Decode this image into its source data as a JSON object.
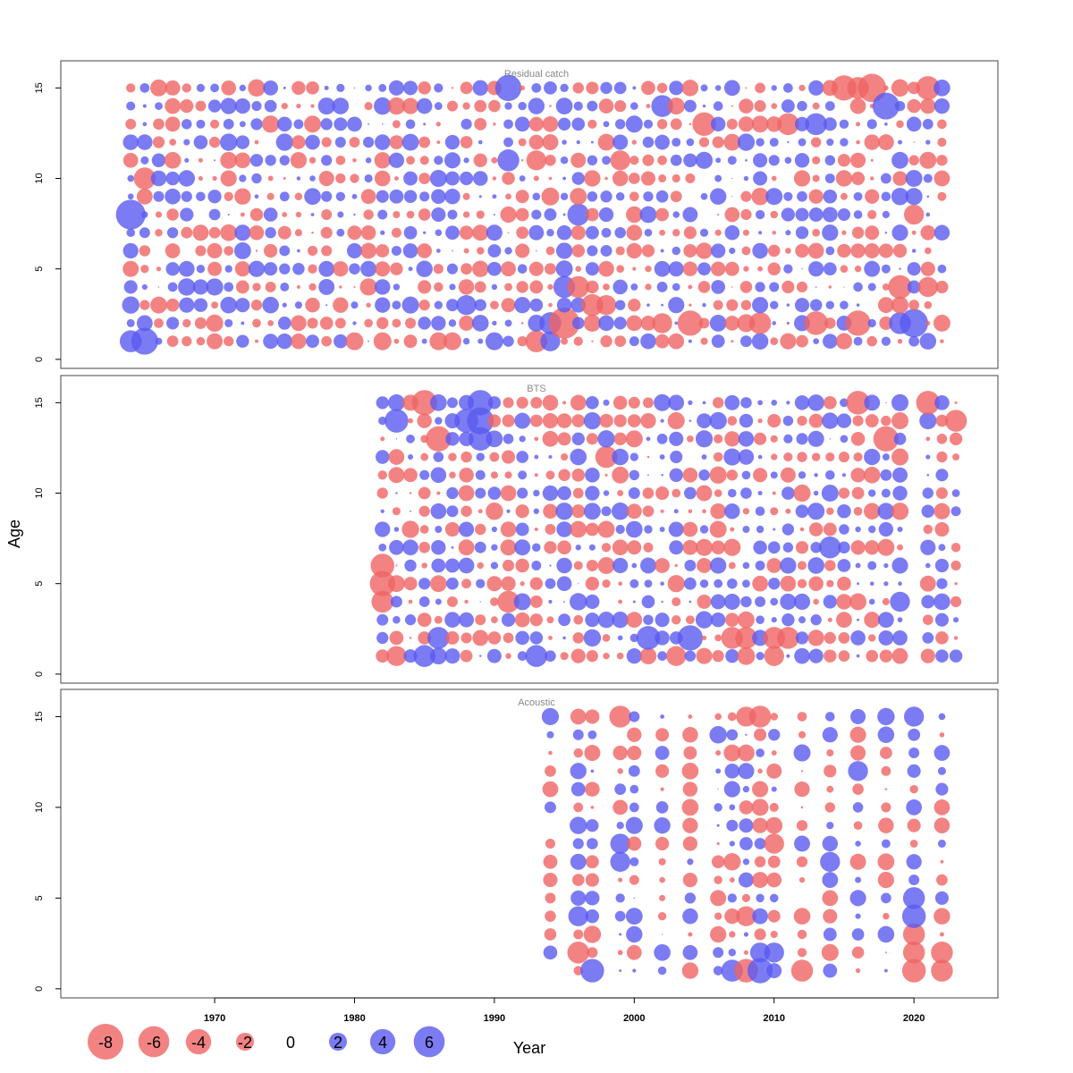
{
  "chart_data": {
    "type": "scatter",
    "xlabel": "Year",
    "ylabel": "Age",
    "xlim": [
      1959,
      2026
    ],
    "ylim": [
      -0.5,
      16.5
    ],
    "x_ticks": [
      1970,
      1980,
      1990,
      2000,
      2010,
      2020
    ],
    "y_ticks": [
      0,
      5,
      10,
      15
    ],
    "max_abs_residual": 8,
    "colors": {
      "positive": "#5a5af0",
      "negative": "#f06464"
    },
    "legend": {
      "placement": "bottom-left",
      "values": [
        -8,
        -6,
        -4,
        -2,
        0,
        2,
        4,
        6
      ]
    },
    "panels": [
      {
        "title": "Residual catch",
        "years": [
          1964,
          2022
        ],
        "ages": [
          1,
          15
        ],
        "points": [
          [
            1964,
            8,
            5.5
          ],
          [
            1965,
            1,
            4.5
          ],
          [
            1964,
            1,
            3
          ],
          [
            1965,
            10,
            -3
          ],
          [
            1991,
            15,
            4.3
          ],
          [
            1991,
            11,
            3
          ],
          [
            1993,
            11,
            -2.5
          ],
          [
            1993,
            1,
            -3
          ],
          [
            1994,
            1,
            2.5
          ],
          [
            1995,
            2,
            -6
          ],
          [
            1994,
            9,
            -2
          ],
          [
            1995,
            4,
            3
          ],
          [
            1996,
            4,
            -3
          ],
          [
            1996,
            8,
            3
          ],
          [
            1997,
            3,
            -3
          ],
          [
            1994,
            2,
            3
          ],
          [
            1998,
            3,
            -2.5
          ],
          [
            2004,
            2,
            -4
          ],
          [
            2013,
            2,
            -3.5
          ],
          [
            2016,
            2,
            -4
          ],
          [
            2019,
            2,
            3
          ],
          [
            2020,
            2,
            5
          ],
          [
            2019,
            4,
            -3.5
          ],
          [
            2021,
            4,
            -2.5
          ],
          [
            2020,
            8,
            -2.5
          ],
          [
            2015,
            15,
            -4
          ],
          [
            2016,
            15,
            -3
          ],
          [
            2017,
            15,
            -5
          ],
          [
            2018,
            14,
            4.5
          ],
          [
            2021,
            15,
            -3.5
          ],
          [
            2005,
            13,
            -3.5
          ],
          [
            2011,
            13,
            -3
          ],
          [
            2013,
            13,
            3
          ],
          [
            2002,
            14,
            3
          ],
          [
            1999,
            11,
            -2.5
          ],
          [
            2009,
            2,
            -3
          ],
          [
            2008,
            2,
            -2
          ],
          [
            2002,
            2,
            -2.5
          ],
          [
            1980,
            1,
            -2
          ],
          [
            1982,
            1,
            -2
          ],
          [
            1988,
            3,
            2.5
          ],
          [
            1990,
            1,
            2
          ],
          [
            1986,
            1,
            -2
          ],
          [
            1987,
            1,
            -2
          ]
        ]
      },
      {
        "title": "BTS",
        "years": [
          1982,
          2023
        ],
        "ages": [
          1,
          15
        ],
        "points": [
          [
            1985,
            15,
            -4
          ],
          [
            1986,
            13,
            -4
          ],
          [
            1988,
            14,
            3.5
          ],
          [
            1989,
            15,
            4
          ],
          [
            1989,
            14,
            4.5
          ],
          [
            1989,
            13,
            3.5
          ],
          [
            1983,
            14,
            3.5
          ],
          [
            1982,
            6,
            -3.5
          ],
          [
            1982,
            5,
            -4
          ],
          [
            1982,
            4,
            -3
          ],
          [
            1991,
            4,
            -3
          ],
          [
            1998,
            12,
            -3
          ],
          [
            2001,
            2,
            3.5
          ],
          [
            2004,
            2,
            4
          ],
          [
            2008,
            2,
            -3
          ],
          [
            2007,
            2,
            -3
          ],
          [
            2010,
            2,
            -3
          ],
          [
            2011,
            2,
            -3
          ],
          [
            2014,
            7,
            3
          ],
          [
            2016,
            15,
            -3.5
          ],
          [
            2018,
            13,
            -4
          ],
          [
            2021,
            15,
            -3.5
          ],
          [
            2023,
            14,
            -3
          ],
          [
            1993,
            1,
            3
          ],
          [
            1985,
            1,
            3
          ],
          [
            1986,
            2,
            3
          ],
          [
            1983,
            1,
            -2.5
          ],
          [
            2003,
            1,
            -2.5
          ],
          [
            2010,
            1,
            -2.5
          ],
          [
            2008,
            1,
            -2
          ],
          [
            2019,
            4,
            2.5
          ]
        ]
      },
      {
        "title": "Acoustic",
        "years": [
          1994,
          1996,
          1997,
          1999,
          2000,
          2002,
          2004,
          2006,
          2007,
          2008,
          2009,
          2010,
          2012,
          2014,
          2016,
          2018,
          2020,
          2022
        ],
        "ages": [
          1,
          15
        ],
        "points": [
          [
            1997,
            1,
            3.5
          ],
          [
            2008,
            1,
            -3.5
          ],
          [
            2009,
            1,
            4
          ],
          [
            2007,
            1,
            3
          ],
          [
            2012,
            1,
            -3
          ],
          [
            2020,
            1,
            -3.5
          ],
          [
            2022,
            1,
            -3
          ],
          [
            2020,
            2,
            -3
          ],
          [
            2022,
            2,
            -3
          ],
          [
            2020,
            3,
            -3
          ],
          [
            2020,
            4,
            3.5
          ],
          [
            2020,
            5,
            3
          ],
          [
            1996,
            2,
            -3
          ],
          [
            1996,
            4,
            2.5
          ],
          [
            1999,
            15,
            -3
          ],
          [
            2009,
            15,
            -3
          ],
          [
            2008,
            15,
            -2.5
          ],
          [
            2020,
            15,
            2.5
          ],
          [
            2016,
            12,
            2.5
          ],
          [
            2010,
            8,
            -2.5
          ],
          [
            2010,
            2,
            2.5
          ],
          [
            2009,
            2,
            2.5
          ],
          [
            2008,
            4,
            -2.5
          ],
          [
            2014,
            7,
            2.5
          ],
          [
            1999,
            8,
            2.5
          ],
          [
            1999,
            7,
            2.5
          ]
        ]
      }
    ]
  }
}
